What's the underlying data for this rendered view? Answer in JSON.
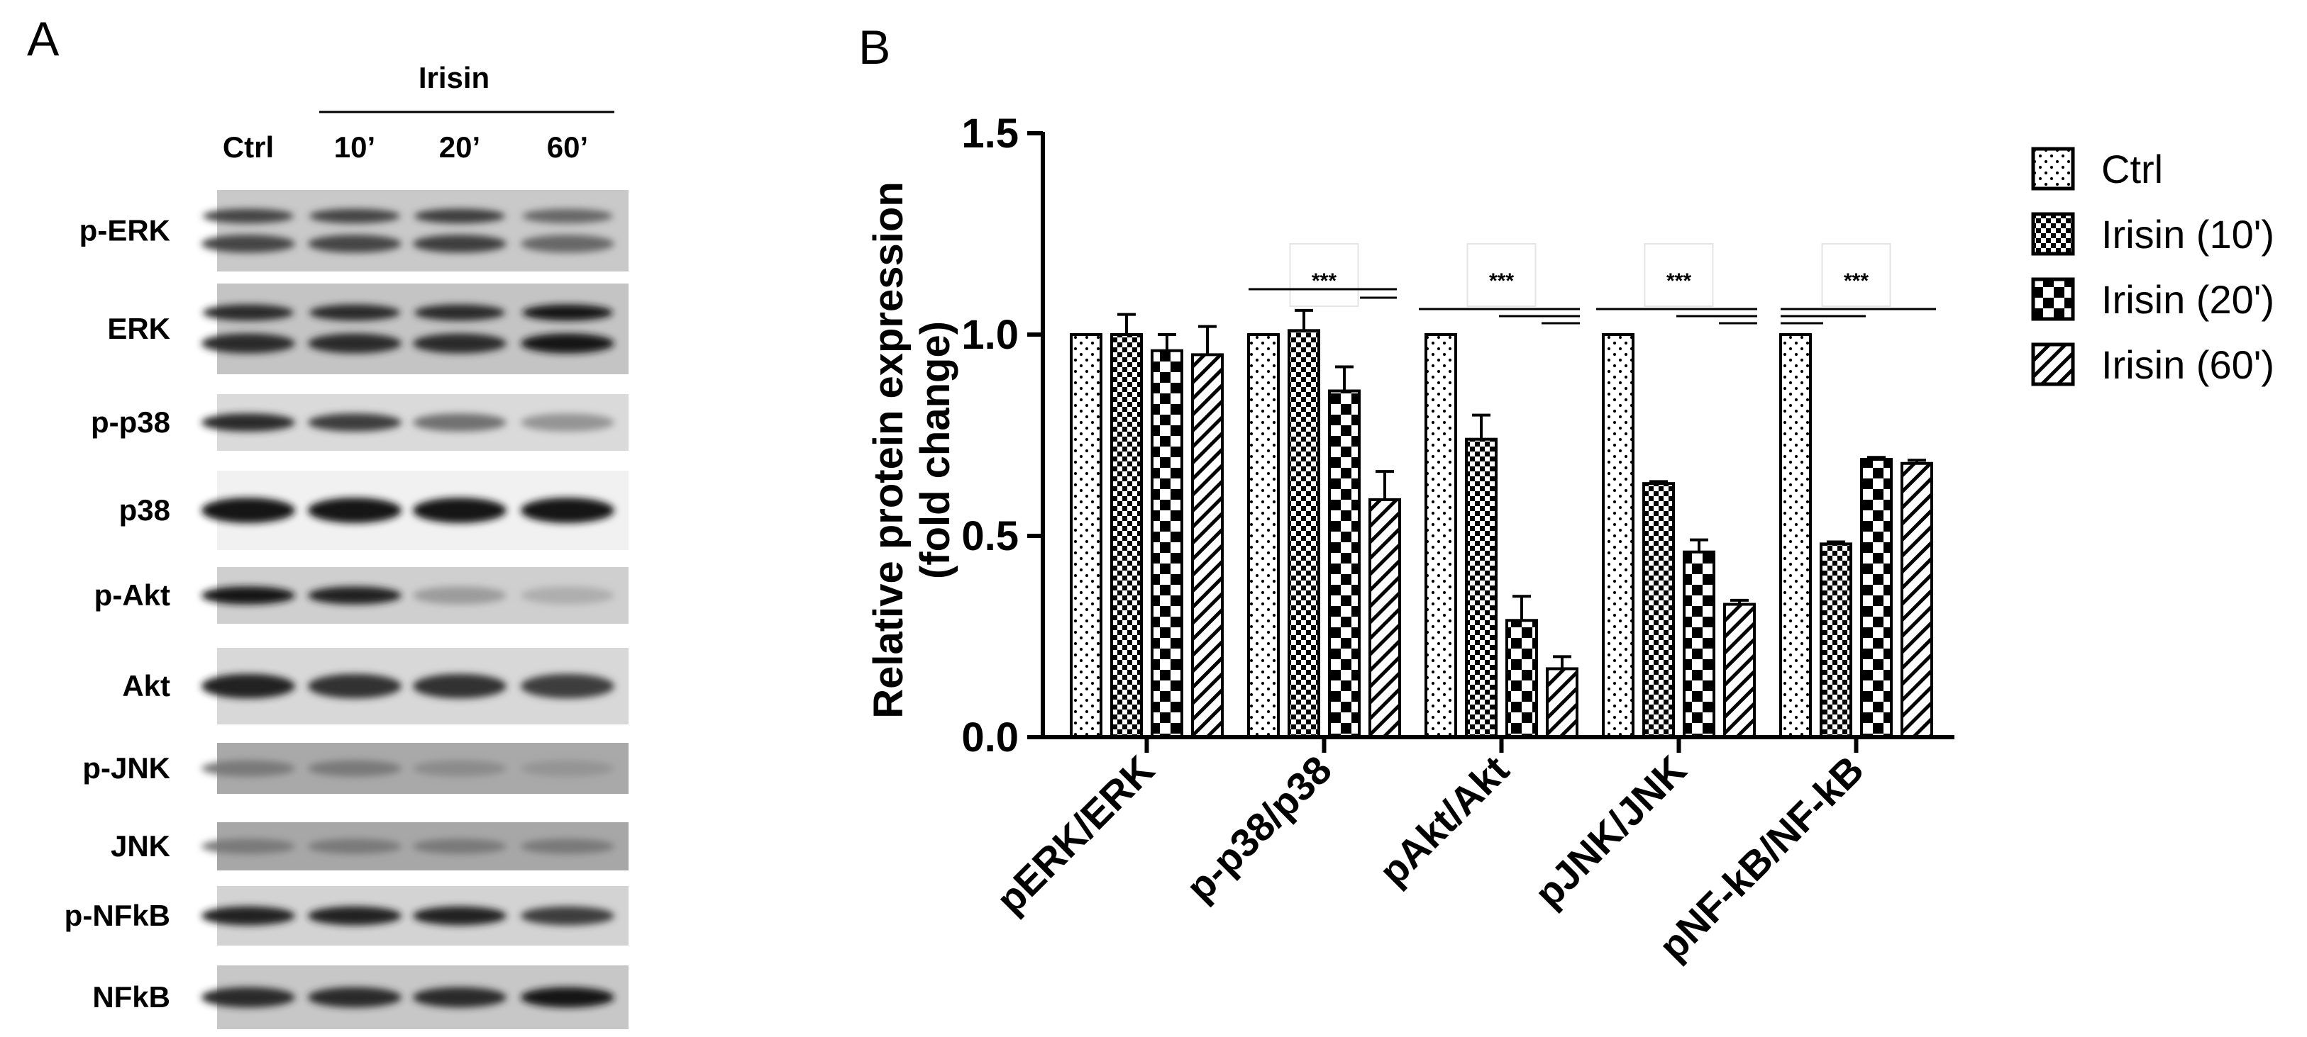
{
  "figure": {
    "panel_a_letter": "A",
    "panel_b_letter": "B"
  },
  "western_blot": {
    "treatment_header": "Irisin",
    "lanes": [
      "Ctrl",
      "10’",
      "20’",
      "60’"
    ],
    "proteins": [
      {
        "name": "p-ERK",
        "doublet": true,
        "intensity": [
          0.75,
          0.75,
          0.8,
          0.55
        ],
        "bg": "#c9c9c9"
      },
      {
        "name": "ERK",
        "doublet": true,
        "intensity": [
          0.9,
          0.9,
          0.9,
          1.0
        ],
        "bg": "#c4c4c4"
      },
      {
        "name": "p-p38",
        "doublet": false,
        "intensity": [
          0.9,
          0.8,
          0.5,
          0.3
        ],
        "bg": "#dadada"
      },
      {
        "name": "p38",
        "doublet": false,
        "intensity": [
          1.0,
          1.0,
          1.0,
          1.0
        ],
        "bg": "#f1f1f1"
      },
      {
        "name": "p-Akt",
        "doublet": false,
        "intensity": [
          1.0,
          0.95,
          0.25,
          0.15
        ],
        "bg": "#cfcfcf"
      },
      {
        "name": "Akt",
        "doublet": false,
        "intensity": [
          0.95,
          0.85,
          0.85,
          0.8
        ],
        "bg": "#d8d8d8"
      },
      {
        "name": "p-JNK",
        "doublet": false,
        "intensity": [
          0.45,
          0.45,
          0.35,
          0.3
        ],
        "bg": "#a9a9a9"
      },
      {
        "name": "JNK",
        "doublet": false,
        "intensity": [
          0.45,
          0.45,
          0.45,
          0.45
        ],
        "bg": "#a7a7a7"
      },
      {
        "name": "p-NFkB",
        "doublet": false,
        "intensity": [
          0.95,
          0.95,
          0.95,
          0.8
        ],
        "bg": "#d3d3d3"
      },
      {
        "name": "NFkB",
        "doublet": false,
        "intensity": [
          0.9,
          0.9,
          0.9,
          1.0
        ],
        "bg": "#c7c7c7"
      }
    ]
  },
  "chart_data": {
    "type": "bar",
    "title": "",
    "ylabel_line1": "Relative protein expression",
    "ylabel_line2": "(fold change)",
    "xlabel": "",
    "ylim": [
      0,
      1.5
    ],
    "yticks": [
      0.0,
      0.5,
      1.0,
      1.5
    ],
    "ytick_labels": [
      "0.0",
      "0.5",
      "1.0",
      "1.5"
    ],
    "categories": [
      "pERK/ERK",
      "p-p38/p38",
      "pAkt/Akt",
      "pJNK/JNK",
      "pNF-kB/NF-kB"
    ],
    "series": [
      {
        "name": "Ctrl",
        "pattern": "dots",
        "values": [
          1.0,
          1.0,
          1.0,
          1.0,
          1.0
        ],
        "errors": [
          0,
          0,
          0,
          0,
          0
        ]
      },
      {
        "name": "Irisin (10')",
        "pattern": "checker-small",
        "values": [
          1.0,
          1.01,
          0.74,
          0.63,
          0.48
        ],
        "errors": [
          0.05,
          0.05,
          0.06,
          0.005,
          0.005
        ]
      },
      {
        "name": "Irisin (20')",
        "pattern": "checker-large",
        "values": [
          0.96,
          0.86,
          0.29,
          0.46,
          0.69
        ],
        "errors": [
          0.04,
          0.06,
          0.06,
          0.03,
          0.005
        ]
      },
      {
        "name": "Irisin (60')",
        "pattern": "diagonal",
        "values": [
          0.95,
          0.59,
          0.17,
          0.33,
          0.68
        ],
        "errors": [
          0.07,
          0.07,
          0.03,
          0.01,
          0.008
        ]
      }
    ],
    "significance": [
      {
        "category_index": 1,
        "label": "***"
      },
      {
        "category_index": 2,
        "label": "***"
      },
      {
        "category_index": 3,
        "label": "***"
      },
      {
        "category_index": 4,
        "label": "***"
      }
    ],
    "legend_position": "right"
  }
}
